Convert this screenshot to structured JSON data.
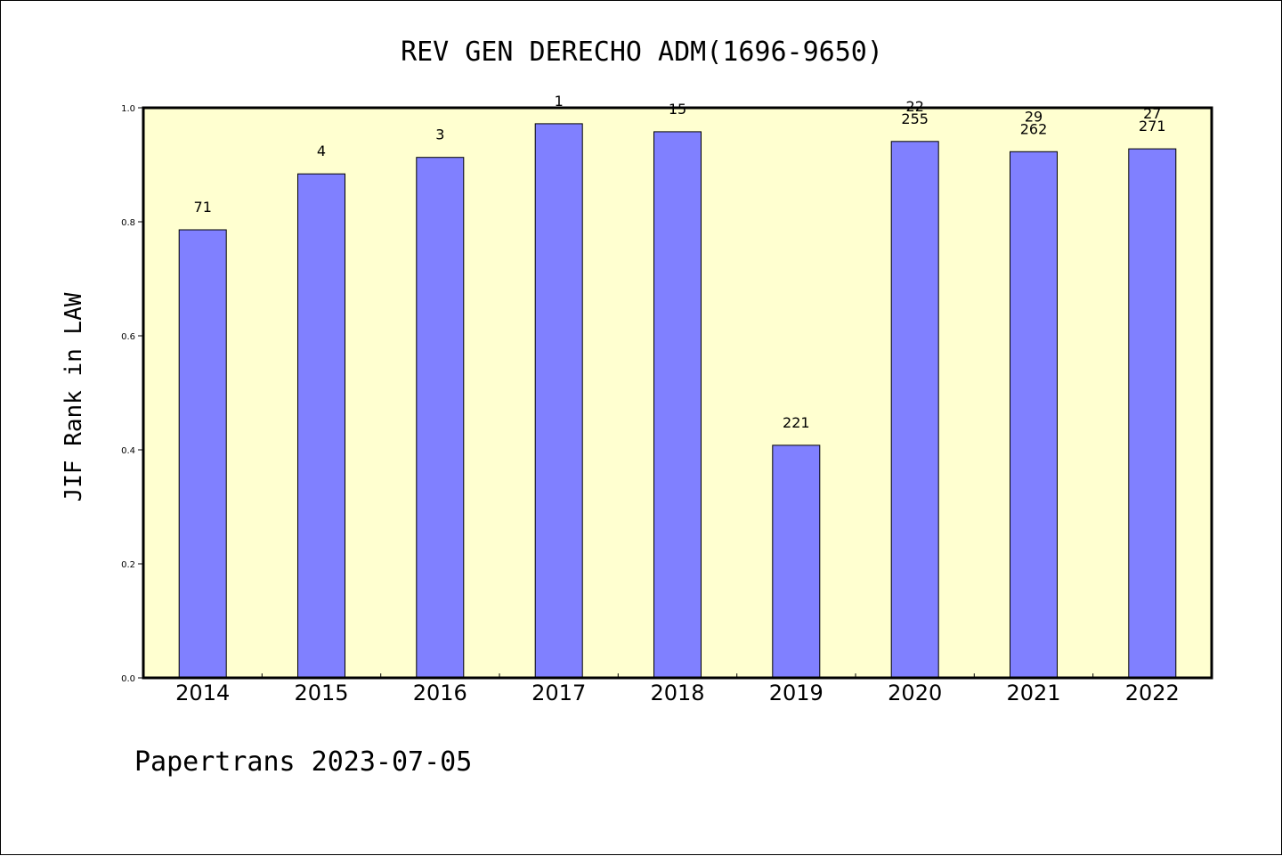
{
  "chart_data": {
    "type": "bar",
    "title": "REV GEN DERECHO ADM(1696-9650)",
    "xlabel": "",
    "ylabel": "JIF Rank in LAW",
    "footer": "Papertrans 2023-07-05",
    "categories": [
      "2014",
      "2015",
      "2016",
      "2017",
      "2018",
      "2019",
      "2020",
      "2021",
      "2022"
    ],
    "values": [
      0.786,
      0.884,
      0.913,
      0.972,
      0.958,
      0.408,
      0.941,
      0.923,
      0.928
    ],
    "annotations": [
      {
        "category": "2014",
        "lines": [
          "71"
        ]
      },
      {
        "category": "2015",
        "lines": [
          "4"
        ]
      },
      {
        "category": "2016",
        "lines": [
          "3"
        ]
      },
      {
        "category": "2017",
        "lines": [
          "1"
        ]
      },
      {
        "category": "2018",
        "lines": [
          "15"
        ]
      },
      {
        "category": "2019",
        "lines": [
          "221"
        ]
      },
      {
        "category": "2020",
        "lines": [
          "22",
          "255"
        ]
      },
      {
        "category": "2021",
        "lines": [
          "29",
          "262"
        ]
      },
      {
        "category": "2022",
        "lines": [
          "27",
          "271"
        ]
      }
    ],
    "ylim": [
      0.0,
      1.0
    ],
    "yticks": [
      0.0,
      0.2,
      0.4,
      0.6,
      0.8,
      1.0
    ],
    "ytick_labels": [
      "0.0",
      "0.2",
      "0.4",
      "0.6",
      "0.8",
      "1.0"
    ],
    "grid": false,
    "legend": "none",
    "colors": {
      "plot_background": "#ffffd0",
      "bar_fill": "#8080ff",
      "bar_stroke": "#000000",
      "axis": "#000000"
    }
  }
}
